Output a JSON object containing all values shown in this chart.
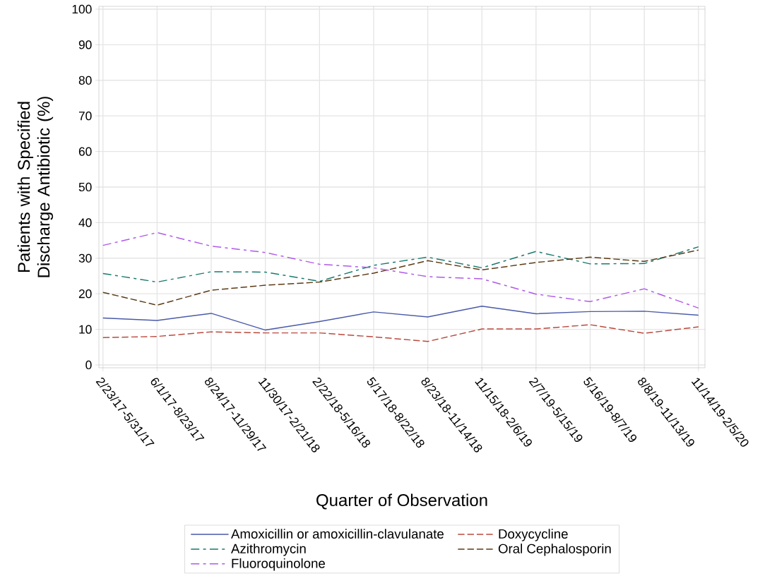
{
  "chart_data": {
    "type": "line",
    "xlabel": "Quarter of Observation",
    "ylabel": "Patients with Specified Discharge Antibiotic (%)",
    "categories": [
      "2/23/17-5/31/17",
      "6/1/17-8/23/17",
      "8/24/17-11/29/17",
      "11/30/17-2/21/18",
      "2/22/18-5/16/18",
      "5/17/18-8/22/18",
      "8/23/18-11/14/18",
      "11/15/18-2/6/19",
      "2/7/19-5/15/19",
      "5/16/19-8/7/19",
      "8/8/19-11/13/19",
      "11/14/19-2/5/20"
    ],
    "series": [
      {
        "name": "Amoxicillin or amoxicillin-clavulanate",
        "color": "#4a5aa8",
        "line_style": "solid",
        "values": [
          13.2,
          12.5,
          14.5,
          9.8,
          12.2,
          14.9,
          13.5,
          16.5,
          14.4,
          15.0,
          15.1,
          14.0
        ]
      },
      {
        "name": "Doxycycline",
        "color": "#b84a3e",
        "line_style": "dashed",
        "values": [
          7.7,
          8.0,
          9.3,
          9.0,
          9.0,
          7.9,
          6.6,
          10.1,
          10.1,
          11.3,
          8.9,
          10.7
        ]
      },
      {
        "name": "Azithromycin",
        "color": "#1a7a6e",
        "line_style": "dashdot",
        "values": [
          25.7,
          23.3,
          26.2,
          26.1,
          23.5,
          28.0,
          30.3,
          27.3,
          31.9,
          28.4,
          28.5,
          33.2
        ]
      },
      {
        "name": "Oral Cephalosporin",
        "color": "#5c3a14",
        "line_style": "dashed",
        "values": [
          20.4,
          16.8,
          21.0,
          22.4,
          23.3,
          25.8,
          29.3,
          26.7,
          28.8,
          30.3,
          29.1,
          32.3
        ]
      },
      {
        "name": "Fluoroquinolone",
        "color": "#b05ae8",
        "line_style": "dashdot",
        "values": [
          33.6,
          37.2,
          33.4,
          31.6,
          28.3,
          27.3,
          24.8,
          24.2,
          19.9,
          17.8,
          21.4,
          16.0
        ]
      }
    ],
    "ylim": [
      0,
      100
    ],
    "yticks": [
      0,
      10,
      20,
      30,
      40,
      50,
      60,
      70,
      80,
      90,
      100
    ],
    "grid": true,
    "legend": "bottom"
  }
}
